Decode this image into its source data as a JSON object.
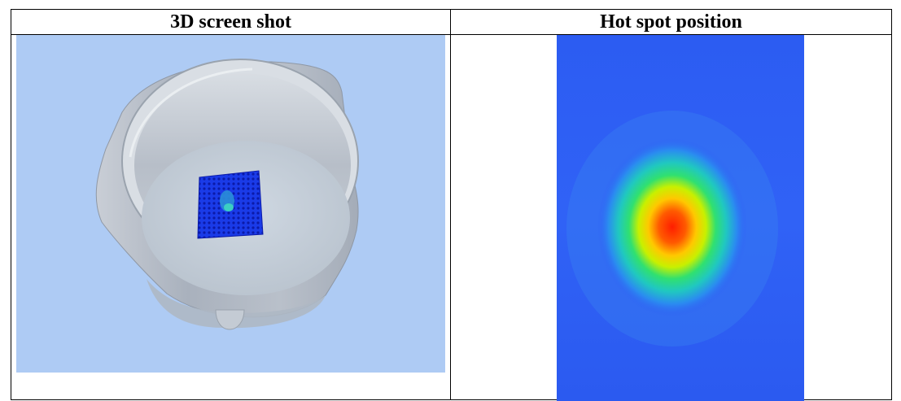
{
  "table": {
    "headers": [
      "3D screen shot",
      "Hot spot position"
    ]
  },
  "images": {
    "left": {
      "description_icon": "3d-bowl-render",
      "background_color": "#aecbf4",
      "mesh_color": "#1e3ff0"
    },
    "right": {
      "description_icon": "heatmap",
      "background_color": "#2f5cf5",
      "hot_color": "#ff2a00"
    }
  }
}
